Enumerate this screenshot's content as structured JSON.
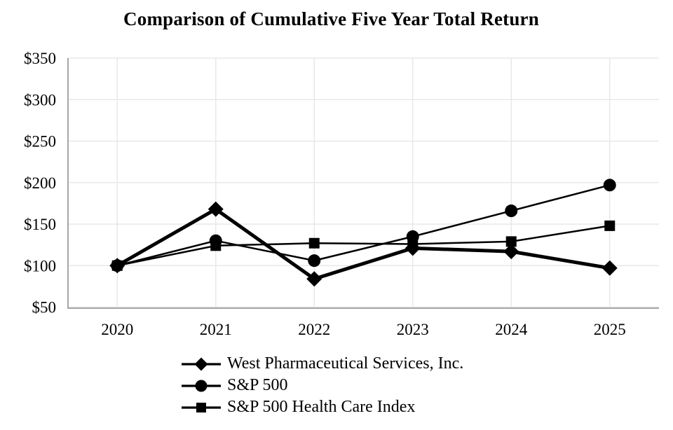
{
  "chart_data": {
    "type": "line",
    "title": "Comparison of Cumulative Five Year Total Return",
    "categories": [
      "2020",
      "2021",
      "2022",
      "2023",
      "2024",
      "2025"
    ],
    "y_tick_labels": [
      "$350",
      "$300",
      "$250",
      "$200",
      "$150",
      "$100",
      "$50"
    ],
    "y_ticks": [
      350,
      300,
      250,
      200,
      150,
      100,
      50
    ],
    "ylim": [
      50,
      350
    ],
    "xlabel": "",
    "ylabel": "",
    "grid": "both",
    "legend_position": "bottom-left",
    "series": [
      {
        "name": "West Pharmaceutical Services, Inc.",
        "marker": "diamond",
        "emphasis": true,
        "values": [
          100,
          168,
          84,
          121,
          117,
          97
        ]
      },
      {
        "name": "S&P 500",
        "marker": "circle",
        "emphasis": false,
        "values": [
          100,
          130,
          106,
          135,
          166,
          197
        ]
      },
      {
        "name": "S&P 500 Health Care Index",
        "marker": "square",
        "emphasis": false,
        "values": [
          100,
          124,
          127,
          126,
          129,
          148
        ]
      }
    ],
    "colors": {
      "series": "#000000",
      "gridline": "#e8e8e8",
      "axis": "#a6a6a6",
      "background": "#ffffff",
      "text": "#000000"
    }
  }
}
